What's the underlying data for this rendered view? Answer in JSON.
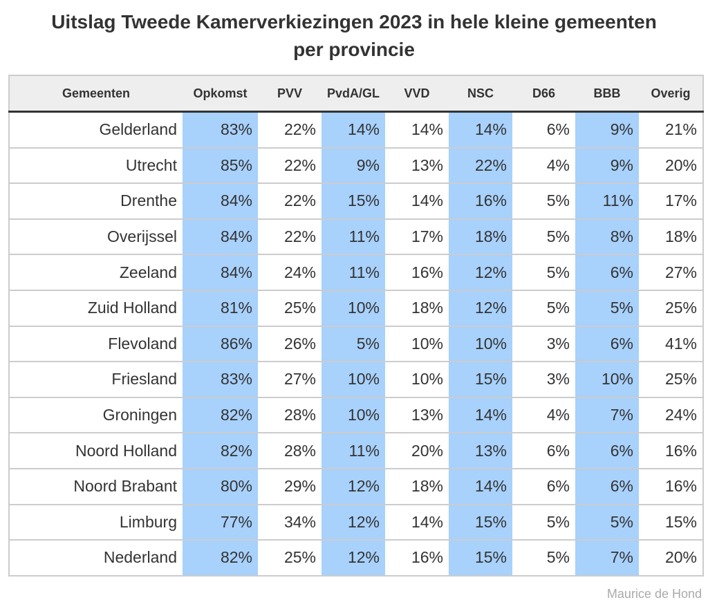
{
  "chart_data": {
    "type": "table",
    "title_line1": "Uitslag Tweede Kamerverkiezingen 2023 in hele kleine gemeenten",
    "title_line2": "per provincie",
    "columns": [
      "Gemeenten",
      "Opkomst",
      "PVV",
      "PvdA/GL",
      "VVD",
      "NSC",
      "D66",
      "BBB",
      "Overig"
    ],
    "highlight_color": "#a8d1fc",
    "highlighted_columns": [
      "Opkomst",
      "PvdA/GL",
      "NSC",
      "BBB"
    ],
    "rows": [
      {
        "name": "Gelderland",
        "values": [
          "83%",
          "22%",
          "14%",
          "14%",
          "14%",
          "6%",
          "9%",
          "21%"
        ]
      },
      {
        "name": "Utrecht",
        "values": [
          "85%",
          "22%",
          "9%",
          "13%",
          "22%",
          "4%",
          "9%",
          "20%"
        ]
      },
      {
        "name": "Drenthe",
        "values": [
          "84%",
          "22%",
          "15%",
          "14%",
          "16%",
          "5%",
          "11%",
          "17%"
        ]
      },
      {
        "name": "Overijssel",
        "values": [
          "84%",
          "22%",
          "11%",
          "17%",
          "18%",
          "5%",
          "8%",
          "18%"
        ]
      },
      {
        "name": "Zeeland",
        "values": [
          "84%",
          "24%",
          "11%",
          "16%",
          "12%",
          "5%",
          "6%",
          "27%"
        ]
      },
      {
        "name": "Zuid Holland",
        "values": [
          "81%",
          "25%",
          "10%",
          "18%",
          "12%",
          "5%",
          "5%",
          "25%"
        ]
      },
      {
        "name": "Flevoland",
        "values": [
          "86%",
          "26%",
          "5%",
          "10%",
          "10%",
          "3%",
          "6%",
          "41%"
        ]
      },
      {
        "name": "Friesland",
        "values": [
          "83%",
          "27%",
          "10%",
          "10%",
          "15%",
          "3%",
          "10%",
          "25%"
        ]
      },
      {
        "name": "Groningen",
        "values": [
          "82%",
          "28%",
          "10%",
          "13%",
          "14%",
          "4%",
          "7%",
          "24%"
        ]
      },
      {
        "name": "Noord Holland",
        "values": [
          "82%",
          "28%",
          "11%",
          "20%",
          "13%",
          "6%",
          "6%",
          "16%"
        ]
      },
      {
        "name": "Noord Brabant",
        "values": [
          "80%",
          "29%",
          "12%",
          "18%",
          "14%",
          "6%",
          "6%",
          "16%"
        ]
      },
      {
        "name": "Limburg",
        "values": [
          "77%",
          "34%",
          "12%",
          "14%",
          "15%",
          "5%",
          "5%",
          "15%"
        ]
      },
      {
        "name": "Nederland",
        "values": [
          "82%",
          "25%",
          "12%",
          "16%",
          "15%",
          "5%",
          "7%",
          "20%"
        ]
      }
    ],
    "source": "Maurice de Hond"
  }
}
